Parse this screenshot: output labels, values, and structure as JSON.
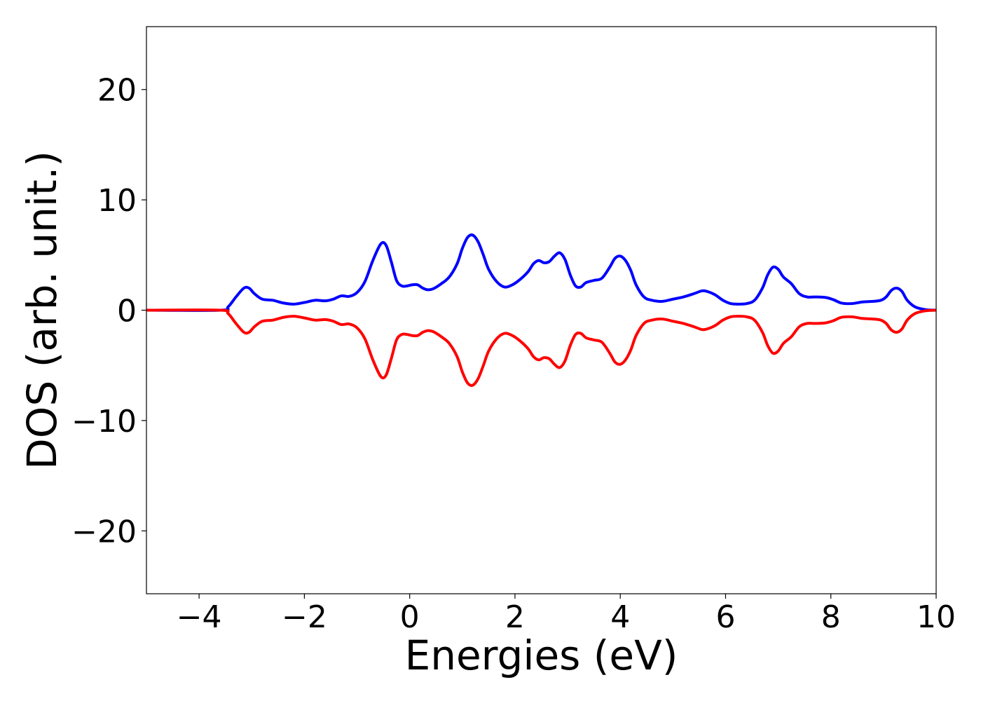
{
  "chart_data": {
    "type": "line",
    "title": "",
    "xlabel": "Energies (eV)",
    "ylabel": "DOS (arb. unit.)",
    "xlim": [
      -5,
      10
    ],
    "ylim": [
      -25.7,
      25.7
    ],
    "xticks": [
      -4,
      -2,
      0,
      2,
      4,
      6,
      8,
      10
    ],
    "xtick_labels": [
      "−4",
      "−2",
      "0",
      "2",
      "4",
      "6",
      "8",
      "10"
    ],
    "yticks": [
      -20,
      -10,
      0,
      10,
      20
    ],
    "ytick_labels": [
      "−20",
      "−10",
      "0",
      "10",
      "20"
    ],
    "grid": false,
    "legend": "none",
    "series": [
      {
        "color": "#0000ff",
        "x": [
          -5,
          -3.6,
          -3.45,
          -3.3,
          -3.15,
          -3.05,
          -2.95,
          -2.8,
          -2.6,
          -2.4,
          -2.2,
          -2.0,
          -1.8,
          -1.6,
          -1.45,
          -1.3,
          -1.15,
          -1.0,
          -0.85,
          -0.7,
          -0.55,
          -0.45,
          -0.35,
          -0.25,
          -0.15,
          -0.05,
          0.05,
          0.15,
          0.25,
          0.35,
          0.45,
          0.6,
          0.75,
          0.9,
          1.0,
          1.1,
          1.2,
          1.3,
          1.4,
          1.5,
          1.65,
          1.8,
          1.95,
          2.1,
          2.25,
          2.35,
          2.45,
          2.55,
          2.65,
          2.75,
          2.85,
          2.95,
          3.05,
          3.15,
          3.25,
          3.35,
          3.5,
          3.65,
          3.8,
          3.9,
          4.0,
          4.1,
          4.2,
          4.3,
          4.45,
          4.6,
          4.8,
          5.0,
          5.2,
          5.4,
          5.55,
          5.65,
          5.8,
          5.95,
          6.1,
          6.25,
          6.4,
          6.55,
          6.7,
          6.8,
          6.9,
          7.0,
          7.1,
          7.25,
          7.4,
          7.55,
          7.7,
          7.9,
          8.05,
          8.2,
          8.4,
          8.6,
          8.8,
          8.95,
          9.05,
          9.15,
          9.25,
          9.35,
          9.45,
          9.6,
          9.8,
          10
        ],
        "y": [
          0,
          0,
          0.3,
          1.2,
          2.0,
          2.0,
          1.5,
          1.0,
          0.9,
          0.65,
          0.55,
          0.7,
          0.9,
          0.85,
          1.0,
          1.3,
          1.25,
          1.6,
          2.6,
          4.5,
          6.0,
          5.9,
          4.4,
          2.7,
          2.2,
          2.2,
          2.3,
          2.3,
          2.0,
          1.85,
          1.95,
          2.4,
          3.0,
          4.2,
          5.6,
          6.6,
          6.8,
          6.2,
          5.0,
          3.7,
          2.6,
          2.1,
          2.3,
          2.8,
          3.5,
          4.2,
          4.5,
          4.3,
          4.4,
          4.9,
          5.2,
          4.6,
          3.2,
          2.2,
          2.1,
          2.5,
          2.7,
          2.9,
          3.9,
          4.7,
          4.9,
          4.5,
          3.6,
          2.3,
          1.2,
          0.9,
          0.8,
          1.0,
          1.2,
          1.5,
          1.75,
          1.7,
          1.4,
          0.9,
          0.6,
          0.55,
          0.6,
          0.9,
          2.0,
          3.2,
          3.9,
          3.7,
          3.0,
          2.4,
          1.5,
          1.2,
          1.2,
          1.15,
          0.95,
          0.65,
          0.6,
          0.75,
          0.8,
          0.9,
          1.2,
          1.8,
          2.0,
          1.7,
          0.9,
          0.3,
          0.05,
          0
        ]
      },
      {
        "color": "#ff0000",
        "x": [
          -5,
          -3.6,
          -3.45,
          -3.3,
          -3.15,
          -3.05,
          -2.95,
          -2.8,
          -2.6,
          -2.4,
          -2.2,
          -2.0,
          -1.8,
          -1.6,
          -1.45,
          -1.3,
          -1.15,
          -1.0,
          -0.85,
          -0.7,
          -0.55,
          -0.45,
          -0.35,
          -0.25,
          -0.15,
          -0.05,
          0.05,
          0.15,
          0.25,
          0.35,
          0.45,
          0.6,
          0.75,
          0.9,
          1.0,
          1.1,
          1.2,
          1.3,
          1.4,
          1.5,
          1.65,
          1.8,
          1.95,
          2.1,
          2.25,
          2.35,
          2.45,
          2.55,
          2.65,
          2.75,
          2.85,
          2.95,
          3.05,
          3.15,
          3.25,
          3.35,
          3.5,
          3.65,
          3.8,
          3.9,
          4.0,
          4.1,
          4.2,
          4.3,
          4.45,
          4.6,
          4.8,
          5.0,
          5.2,
          5.4,
          5.55,
          5.65,
          5.8,
          5.95,
          6.1,
          6.25,
          6.4,
          6.55,
          6.7,
          6.8,
          6.9,
          7.0,
          7.1,
          7.25,
          7.4,
          7.55,
          7.7,
          7.9,
          8.05,
          8.2,
          8.4,
          8.6,
          8.8,
          8.95,
          9.05,
          9.15,
          9.25,
          9.35,
          9.45,
          9.6,
          9.8,
          10
        ],
        "y": [
          0,
          0,
          -0.3,
          -1.2,
          -2.0,
          -2.0,
          -1.5,
          -1.0,
          -0.9,
          -0.65,
          -0.55,
          -0.7,
          -0.9,
          -0.85,
          -1.0,
          -1.3,
          -1.25,
          -1.6,
          -2.6,
          -4.5,
          -6.0,
          -5.9,
          -4.4,
          -2.7,
          -2.2,
          -2.2,
          -2.3,
          -2.3,
          -2.0,
          -1.85,
          -1.95,
          -2.4,
          -3.0,
          -4.2,
          -5.6,
          -6.6,
          -6.8,
          -6.2,
          -5.0,
          -3.7,
          -2.6,
          -2.1,
          -2.3,
          -2.8,
          -3.5,
          -4.2,
          -4.5,
          -4.3,
          -4.4,
          -4.9,
          -5.2,
          -4.6,
          -3.2,
          -2.2,
          -2.1,
          -2.5,
          -2.7,
          -2.9,
          -3.9,
          -4.7,
          -4.9,
          -4.5,
          -3.6,
          -2.3,
          -1.2,
          -0.9,
          -0.8,
          -1.0,
          -1.2,
          -1.5,
          -1.75,
          -1.7,
          -1.4,
          -0.9,
          -0.6,
          -0.55,
          -0.6,
          -0.9,
          -2.0,
          -3.2,
          -3.9,
          -3.7,
          -3.0,
          -2.4,
          -1.5,
          -1.2,
          -1.2,
          -1.15,
          -0.95,
          -0.65,
          -0.6,
          -0.75,
          -0.8,
          -0.9,
          -1.2,
          -1.8,
          -2.0,
          -1.7,
          -0.9,
          -0.3,
          -0.05,
          0
        ]
      }
    ]
  }
}
